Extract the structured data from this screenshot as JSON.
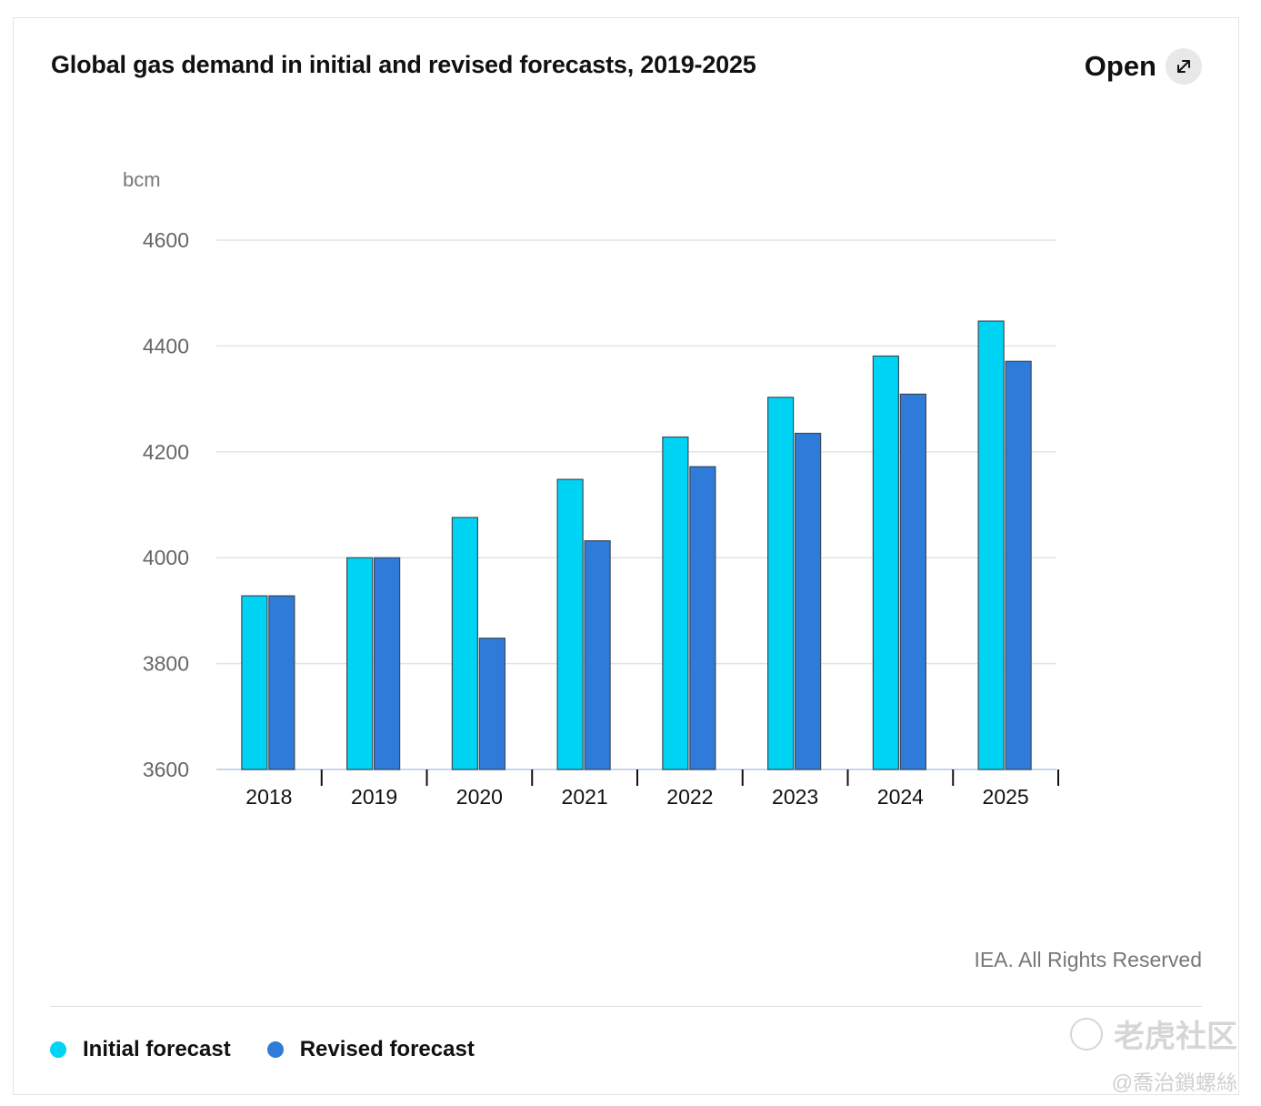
{
  "header": {
    "title": "Global gas demand in initial and revised forecasts, 2019-2025",
    "open_label": "Open"
  },
  "footer": {
    "credit": "IEA. All Rights Reserved"
  },
  "legend": [
    {
      "label": "Initial forecast",
      "color": "#00d4f5"
    },
    {
      "label": "Revised forecast",
      "color": "#2f7bd9"
    }
  ],
  "watermark": {
    "brand": "老虎社区",
    "handle": "@喬治鎖螺絲"
  },
  "chart_data": {
    "type": "bar",
    "title": "Global gas demand in initial and revised forecasts, 2019-2025",
    "ylabel": "bcm",
    "xlabel": "",
    "ylim": [
      3600,
      4600
    ],
    "yticks": [
      3600,
      3800,
      4000,
      4200,
      4400,
      4600
    ],
    "categories": [
      "2018",
      "2019",
      "2020",
      "2021",
      "2022",
      "2023",
      "2024",
      "2025"
    ],
    "series": [
      {
        "name": "Initial forecast",
        "color": "#00d4f5",
        "values": [
          3928,
          4000,
          4076,
          4148,
          4228,
          4303,
          4381,
          4447
        ]
      },
      {
        "name": "Revised forecast",
        "color": "#2f7bd9",
        "values": [
          3928,
          4000,
          3848,
          4032,
          4172,
          4235,
          4309,
          4371
        ]
      }
    ],
    "grid": true,
    "legend_position": "bottom-left"
  }
}
